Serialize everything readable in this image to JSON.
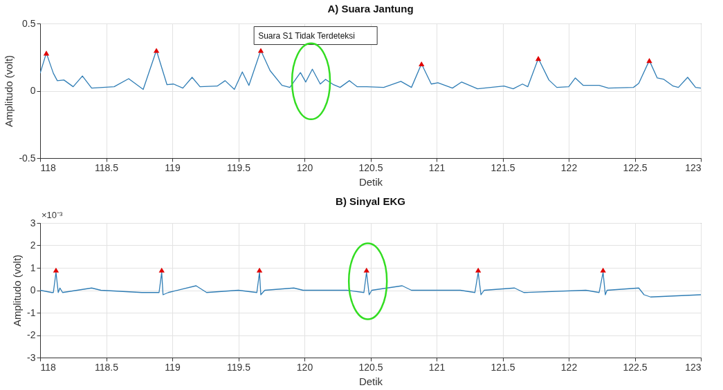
{
  "chart_data": [
    {
      "type": "line",
      "title": "A) Suara Jantung",
      "xlabel": "Detik",
      "ylabel": "Amplitudo (volt)",
      "xlim": [
        118,
        123
      ],
      "xticks": [
        118,
        118.5,
        119,
        119.5,
        120,
        120.5,
        121,
        121.5,
        122,
        122.5,
        123
      ],
      "ylim": [
        -0.5,
        0.5
      ],
      "yticks": [
        -0.5,
        0,
        0.5
      ],
      "grid": true,
      "series": [
        {
          "color": "#2f7db5",
          "x": [
            118.0,
            118.047,
            118.1,
            118.13,
            118.18,
            118.25,
            118.32,
            118.39,
            118.56,
            118.67,
            118.78,
            118.88,
            118.96,
            119.01,
            119.08,
            119.15,
            119.21,
            119.34,
            119.4,
            119.47,
            119.53,
            119.58,
            119.67,
            119.74,
            119.83,
            119.89,
            119.97,
            120.01,
            120.06,
            120.12,
            120.16,
            120.22,
            120.27,
            120.34,
            120.4,
            120.47,
            120.6,
            120.73,
            120.81,
            120.886,
            120.96,
            121.01,
            121.12,
            121.19,
            121.31,
            121.51,
            121.58,
            121.65,
            121.69,
            121.77,
            121.85,
            121.91,
            122.0,
            122.05,
            122.11,
            122.23,
            122.3,
            122.49,
            122.53,
            122.61,
            122.67,
            122.72,
            122.79,
            122.83,
            122.9,
            122.96,
            123.0
          ],
          "values": [
            0.13,
            0.28,
            0.13,
            0.075,
            0.08,
            0.03,
            0.11,
            0.02,
            0.03,
            0.09,
            0.01,
            0.3,
            0.045,
            0.05,
            0.02,
            0.1,
            0.03,
            0.035,
            0.075,
            0.01,
            0.14,
            0.04,
            0.3,
            0.15,
            0.04,
            0.025,
            0.135,
            0.065,
            0.16,
            0.05,
            0.085,
            0.045,
            0.025,
            0.075,
            0.03,
            0.03,
            0.025,
            0.07,
            0.025,
            0.2,
            0.05,
            0.06,
            0.02,
            0.065,
            0.015,
            0.035,
            0.015,
            0.05,
            0.03,
            0.24,
            0.08,
            0.025,
            0.03,
            0.095,
            0.04,
            0.04,
            0.02,
            0.025,
            0.055,
            0.225,
            0.095,
            0.085,
            0.035,
            0.025,
            0.1,
            0.025,
            0.02
          ]
        },
        {
          "type": "scatter",
          "marker": "triangle",
          "color": "#e00000",
          "x": [
            118.047,
            118.88,
            119.67,
            120.886,
            121.77,
            122.61
          ],
          "values": [
            0.28,
            0.3,
            0.3,
            0.2,
            0.24,
            0.225
          ]
        }
      ],
      "annotations": [
        "Suara S1 Tidak Terdeteksi"
      ]
    },
    {
      "type": "line",
      "title": "B) Sinyal EKG",
      "xlabel": "Detik",
      "ylabel": "Amplitudo (volt)",
      "xlim": [
        118,
        123
      ],
      "xticks": [
        118,
        118.5,
        119,
        119.5,
        120,
        120.5,
        121,
        121.5,
        122,
        122.5,
        123
      ],
      "ylim": [
        -3,
        3
      ],
      "yticks": [
        -3,
        -2,
        -1,
        0,
        1,
        2,
        3
      ],
      "grid": true,
      "series": [
        {
          "color": "#2f7db5",
          "x": [
            118.0,
            118.088,
            118.1,
            118.12,
            118.137,
            118.15,
            118.17,
            118.39,
            118.46,
            118.77,
            118.9,
            118.92,
            118.93,
            118.97,
            119.18,
            119.26,
            119.5,
            119.64,
            119.66,
            119.67,
            119.7,
            119.92,
            119.99,
            120.32,
            120.45,
            120.47,
            120.49,
            120.51,
            120.74,
            120.81,
            121.18,
            121.29,
            121.315,
            121.336,
            121.36,
            121.59,
            121.66,
            122.13,
            122.23,
            122.26,
            122.277,
            122.29,
            122.53,
            122.57,
            122.62,
            123.0
          ],
          "values": [
            0.0,
            -0.1,
            -0.1,
            0.8,
            -0.1,
            0.1,
            -0.1,
            0.1,
            0.0,
            -0.1,
            -0.1,
            0.8,
            -0.2,
            -0.1,
            0.2,
            -0.1,
            0.0,
            -0.1,
            0.8,
            -0.2,
            0.0,
            0.1,
            0.0,
            0.0,
            -0.1,
            0.8,
            -0.2,
            0.0,
            0.2,
            0.0,
            0.0,
            -0.1,
            0.8,
            -0.2,
            0.0,
            0.1,
            -0.1,
            0.0,
            -0.1,
            0.8,
            -0.2,
            0.0,
            0.1,
            -0.2,
            -0.3,
            -0.2
          ]
        },
        {
          "type": "scatter",
          "marker": "triangle",
          "color": "#e00000",
          "x": [
            118.12,
            118.92,
            119.66,
            120.47,
            121.315,
            122.26
          ],
          "values": [
            0.9,
            0.9,
            0.9,
            0.9,
            0.9,
            0.9
          ]
        }
      ],
      "annotations": [
        "×10⁻³"
      ]
    }
  ]
}
